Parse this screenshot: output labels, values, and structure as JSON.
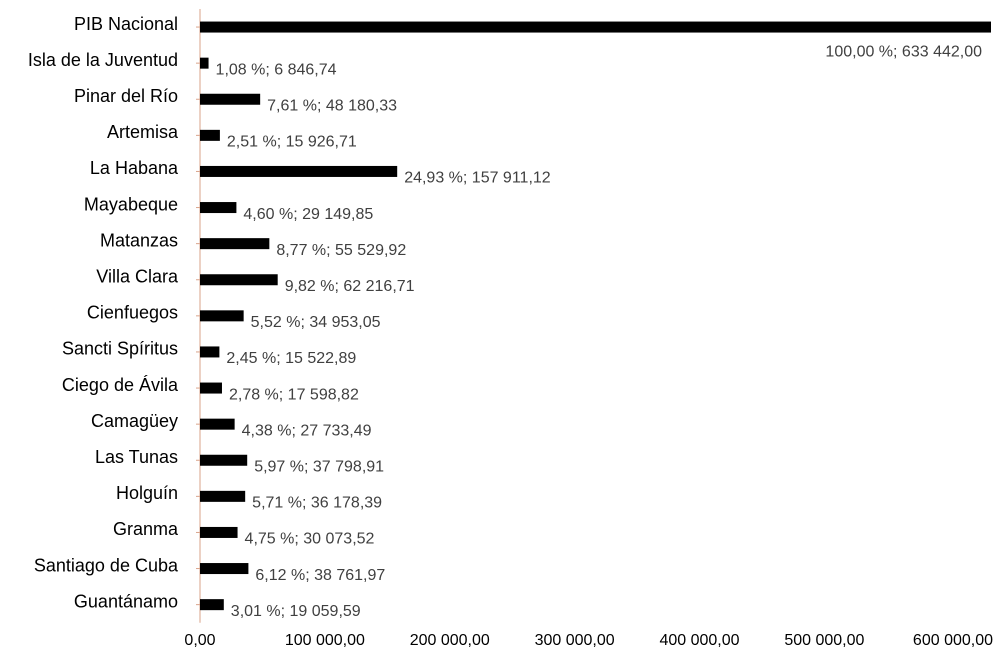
{
  "chart_data": {
    "type": "bar",
    "orientation": "horizontal",
    "title": "",
    "xlabel": "",
    "ylabel": "",
    "categories": [
      "PIB Nacional",
      "Isla de la Juventud",
      "Pinar del Río",
      "Artemisa",
      "La Habana",
      "Mayabeque",
      "Matanzas",
      "Villa Clara",
      "Cienfuegos",
      "Sancti Spíritus",
      "Ciego de Ávila",
      "Camagüey",
      "Las Tunas",
      "Holguín",
      "Granma",
      "Santiago de Cuba",
      "Guantánamo"
    ],
    "values": [
      633442.0,
      6846.74,
      48180.33,
      15926.71,
      157911.12,
      29149.85,
      55529.92,
      62216.71,
      34953.05,
      15522.89,
      17598.82,
      27733.49,
      37798.91,
      36178.39,
      30073.52,
      38761.97,
      19059.59
    ],
    "data_labels": [
      "100,00 %; 633 442,00",
      "1,08 %; 6 846,74",
      "7,61 %; 48 180,33",
      "2,51 %; 15 926,71",
      "24,93 %; 157 911,12",
      "4,60 %; 29 149,85",
      "8,77 %; 55 529,92",
      "9,82 %; 62 216,71",
      "5,52 %; 34 953,05",
      "2,45 %; 15 522,89",
      "2,78 %; 17 598,82",
      "4,38 %; 27 733,49",
      "5,97 %; 37 798,91",
      "5,71 %; 36 178,39",
      "4,75 %; 30 073,52",
      "6,12 %; 38 761,97",
      "3,01 %; 19 059,59"
    ],
    "xlim": [
      0,
      633442
    ],
    "xticks": [
      0,
      100000,
      200000,
      300000,
      400000,
      500000,
      600000
    ],
    "xtick_labels": [
      "0,00",
      "100 000,00",
      "200 000,00",
      "300 000,00",
      "400 000,00",
      "500 000,00",
      "600 000,00"
    ],
    "grid": false,
    "legend": "none",
    "colors": {
      "bar": "#000000",
      "axis": "#d9a38a",
      "data_label": "#404040",
      "text": "#000000"
    }
  }
}
